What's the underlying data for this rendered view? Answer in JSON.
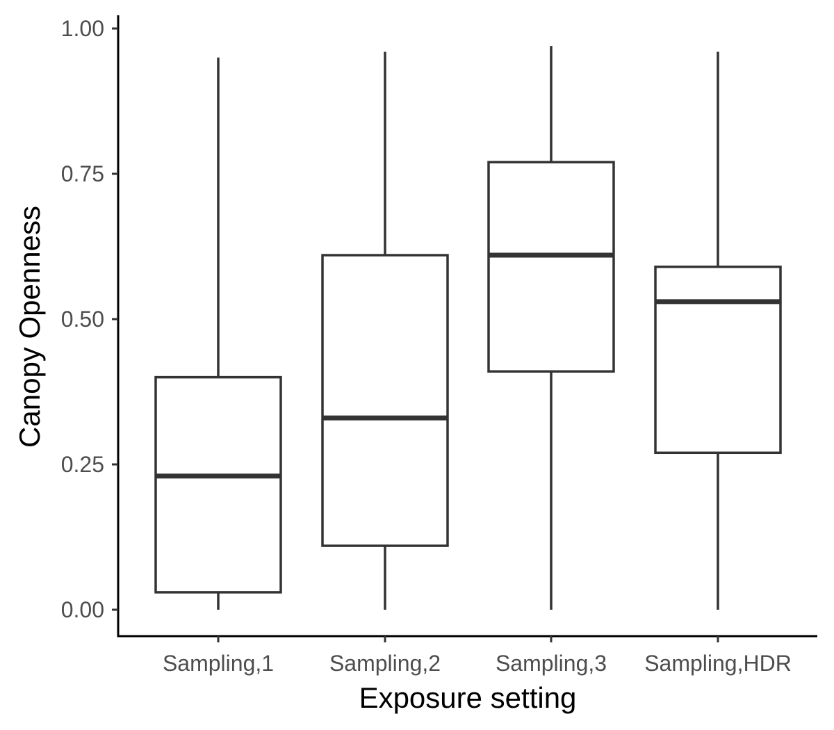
{
  "chart_data": {
    "type": "boxplot",
    "title": "",
    "xlabel": "Exposure setting",
    "ylabel": "Canopy Openness",
    "ylim": [
      0,
      1
    ],
    "yticks": [
      "0.00",
      "0.25",
      "0.50",
      "0.75",
      "1.00"
    ],
    "grid": false,
    "legend": "none",
    "categories": [
      "Sampling,1",
      "Sampling,2",
      "Sampling,3",
      "Sampling,HDR"
    ],
    "boxes": [
      {
        "category": "Sampling,1",
        "min": 0.0,
        "q1": 0.03,
        "median": 0.23,
        "q3": 0.4,
        "max": 0.95
      },
      {
        "category": "Sampling,2",
        "min": 0.0,
        "q1": 0.11,
        "median": 0.33,
        "q3": 0.61,
        "max": 0.96
      },
      {
        "category": "Sampling,3",
        "min": 0.0,
        "q1": 0.41,
        "median": 0.61,
        "q3": 0.77,
        "max": 0.97
      },
      {
        "category": "Sampling,HDR",
        "min": 0.0,
        "q1": 0.27,
        "median": 0.53,
        "q3": 0.59,
        "max": 0.96
      }
    ],
    "colors": {
      "box_line": "#333333",
      "box_fill": "#ffffff",
      "axis": "#000000",
      "tick_text": "#4d4d4d"
    }
  }
}
